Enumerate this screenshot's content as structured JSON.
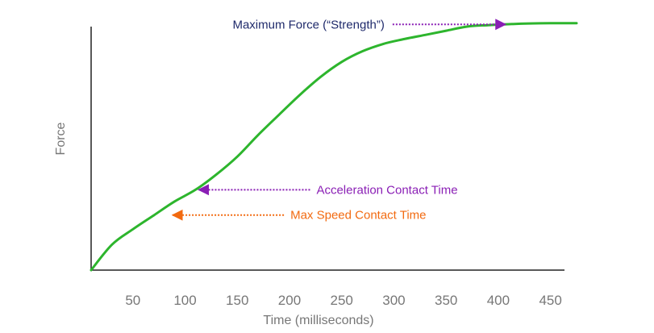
{
  "chart_data": {
    "type": "line",
    "title": "",
    "xlabel": "Time (milliseconds)",
    "ylabel": "Force",
    "xlim": [
      10,
      475
    ],
    "ylim": [
      0,
      100
    ],
    "x_ticks": [
      50,
      100,
      150,
      200,
      250,
      300,
      350,
      400,
      450
    ],
    "y_ticks": [],
    "grid": false,
    "legend": "none",
    "series": [
      {
        "color": "#2db52d",
        "x": [
          10,
          30,
          50,
          70,
          90,
          110,
          130,
          150,
          170,
          190,
          210,
          230,
          250,
          270,
          290,
          310,
          330,
          350,
          370,
          390,
          410,
          430,
          450,
          475
        ],
        "y": [
          0,
          10.5,
          16.8,
          22.5,
          28.2,
          33.0,
          39.3,
          46.6,
          55.5,
          63.8,
          72.0,
          79.4,
          85.5,
          89.9,
          92.9,
          94.9,
          96.6,
          98.3,
          100.0,
          100.6,
          101.0,
          101.3,
          101.4,
          101.4
        ]
      }
    ],
    "annotations": [
      {
        "text": "Maximum Force (“Strength”)",
        "color": "#1f2a6b",
        "arrow_color": "#8a1fb5",
        "arrow_to_x": 410,
        "arrow_to_y": 100.9,
        "direction": "right"
      },
      {
        "text": "Acceleration Contact Time",
        "color": "#8a1fb5",
        "arrow_color": "#8a1fb5",
        "arrow_to_x": 110,
        "arrow_to_y": 33.0,
        "direction": "left"
      },
      {
        "text": "Max Speed Contact Time",
        "color": "#f26a10",
        "arrow_color": "#f26a10",
        "arrow_to_x": 85,
        "arrow_to_y": 22.6,
        "direction": "left"
      }
    ]
  },
  "colors": {
    "axis": "#222222",
    "tick_label": "#777777",
    "axis_label": "#777777",
    "line": "#2db52d"
  }
}
